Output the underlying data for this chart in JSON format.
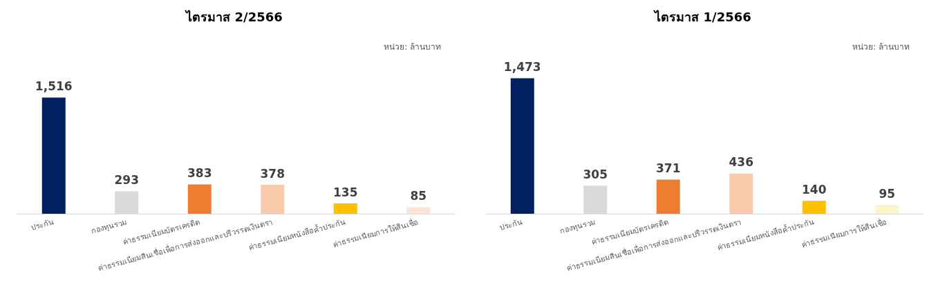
{
  "chart_data": [
    {
      "type": "bar",
      "title": "ไตรมาส 2/2566",
      "annotations": [
        "หน่วย: ล้านบาท"
      ],
      "categories": [
        "ประกัน",
        "กองทุนรวม",
        "ค่าธรรมเนียมบัตรเครดิต",
        "ค่าธรรมเนียมสินเชื่อเพื่อการส่งออกและปริวรรตเงินตรา",
        "ค่าธรรมเนียมหนังสือค้ำประกัน",
        "ค่าธรรมเนียมการให้สินเชื่อ"
      ],
      "values": [
        1516,
        293,
        383,
        378,
        135,
        85
      ],
      "colors": [
        "#002060",
        "#d9d9d9",
        "#ed7d31",
        "#f8cbad",
        "#ffc000",
        "#fbe5d6"
      ],
      "value_labels": [
        "1,516",
        "293",
        "383",
        "378",
        "135",
        "85"
      ]
    },
    {
      "type": "bar",
      "title": "ไตรมาส 1/2566",
      "annotations": [
        "หน่วย: ล้านบาท"
      ],
      "categories": [
        "ประกัน",
        "กองทุนรวม",
        "ค่าธรรมเนียมบัตรเครดิต",
        "ค่าธรรมเนียมสินเชื่อเพื่อการส่งออกและปริวรรตเงินตรา",
        "ค่าธรรมเนียมหนังสือค้ำประกัน",
        "ค่าธรรมเนียมการให้สินเชื่อ"
      ],
      "values": [
        1473,
        305,
        371,
        436,
        140,
        95
      ],
      "colors": [
        "#002060",
        "#d9d9d9",
        "#ed7d31",
        "#f8cbad",
        "#ffc000",
        "#fff2cc"
      ],
      "value_labels": [
        "1,473",
        "305",
        "371",
        "436",
        "140",
        "95"
      ]
    }
  ]
}
